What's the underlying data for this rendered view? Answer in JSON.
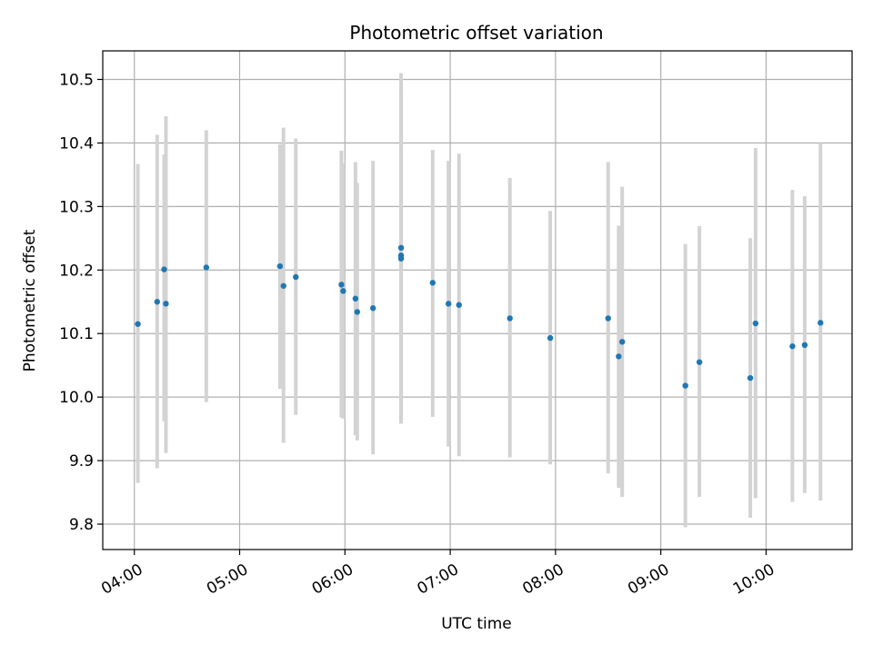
{
  "chart_data": {
    "type": "scatter",
    "title": "Photometric offset variation",
    "xlabel": "UTC time",
    "ylabel": "Photometric offset",
    "x_tick_labels": [
      "04:00",
      "05:00",
      "06:00",
      "07:00",
      "08:00",
      "09:00",
      "10:00"
    ],
    "y_tick_labels": [
      "9.8",
      "9.9",
      "10.0",
      "10.1",
      "10.2",
      "10.3",
      "10.4",
      "10.5"
    ],
    "y_ticks": [
      9.8,
      9.9,
      10.0,
      10.1,
      10.2,
      10.3,
      10.4,
      10.5
    ],
    "xlim": [
      "03:42",
      "10:49"
    ],
    "ylim": [
      9.76,
      10.545
    ],
    "grid": true,
    "point_color": "#1f77b4",
    "errorbar_color": "#d3d3d3",
    "points": [
      {
        "time": "04:02",
        "y": 10.115,
        "y_low": 9.865,
        "y_high": 10.367
      },
      {
        "time": "04:13",
        "y": 10.15,
        "y_low": 9.888,
        "y_high": 10.413
      },
      {
        "time": "04:17",
        "y": 10.201,
        "y_low": 9.962,
        "y_high": 10.382
      },
      {
        "time": "04:18",
        "y": 10.147,
        "y_low": 9.912,
        "y_high": 10.442
      },
      {
        "time": "04:41",
        "y": 10.204,
        "y_low": 9.992,
        "y_high": 10.42
      },
      {
        "time": "05:23",
        "y": 10.206,
        "y_low": 10.013,
        "y_high": 10.398
      },
      {
        "time": "05:25",
        "y": 10.175,
        "y_low": 9.928,
        "y_high": 10.424
      },
      {
        "time": "05:32",
        "y": 10.189,
        "y_low": 9.972,
        "y_high": 10.407
      },
      {
        "time": "05:58",
        "y": 10.177,
        "y_low": 9.968,
        "y_high": 10.388
      },
      {
        "time": "05:59",
        "y": 10.167,
        "y_low": 9.966,
        "y_high": 10.368
      },
      {
        "time": "06:06",
        "y": 10.155,
        "y_low": 9.94,
        "y_high": 10.37
      },
      {
        "time": "06:07",
        "y": 10.134,
        "y_low": 9.932,
        "y_high": 10.337
      },
      {
        "time": "06:16",
        "y": 10.14,
        "y_low": 9.91,
        "y_high": 10.372
      },
      {
        "time": "06:32",
        "y": 10.235,
        "y_low": 9.958,
        "y_high": 10.51
      },
      {
        "time": "06:32",
        "y": 10.223,
        "y_low": 9.96,
        "y_high": 10.487
      },
      {
        "time": "06:32",
        "y": 10.218,
        "y_low": 9.961,
        "y_high": 10.48
      },
      {
        "time": "06:50",
        "y": 10.18,
        "y_low": 9.969,
        "y_high": 10.389
      },
      {
        "time": "06:59",
        "y": 10.147,
        "y_low": 9.922,
        "y_high": 10.372
      },
      {
        "time": "07:05",
        "y": 10.145,
        "y_low": 9.907,
        "y_high": 10.383
      },
      {
        "time": "07:34",
        "y": 10.124,
        "y_low": 9.905,
        "y_high": 10.345
      },
      {
        "time": "07:57",
        "y": 10.093,
        "y_low": 9.894,
        "y_high": 10.293
      },
      {
        "time": "08:30",
        "y": 10.124,
        "y_low": 9.88,
        "y_high": 10.37
      },
      {
        "time": "08:36",
        "y": 10.064,
        "y_low": 9.857,
        "y_high": 10.27
      },
      {
        "time": "08:38",
        "y": 10.087,
        "y_low": 9.843,
        "y_high": 10.331
      },
      {
        "time": "09:14",
        "y": 10.018,
        "y_low": 9.795,
        "y_high": 10.241
      },
      {
        "time": "09:22",
        "y": 10.055,
        "y_low": 9.843,
        "y_high": 10.269
      },
      {
        "time": "09:51",
        "y": 10.03,
        "y_low": 9.81,
        "y_high": 10.25
      },
      {
        "time": "09:54",
        "y": 10.116,
        "y_low": 9.841,
        "y_high": 10.392
      },
      {
        "time": "10:15",
        "y": 10.08,
        "y_low": 9.835,
        "y_high": 10.326
      },
      {
        "time": "10:22",
        "y": 10.082,
        "y_low": 9.849,
        "y_high": 10.316
      },
      {
        "time": "10:31",
        "y": 10.117,
        "y_low": 9.837,
        "y_high": 10.4
      }
    ]
  }
}
